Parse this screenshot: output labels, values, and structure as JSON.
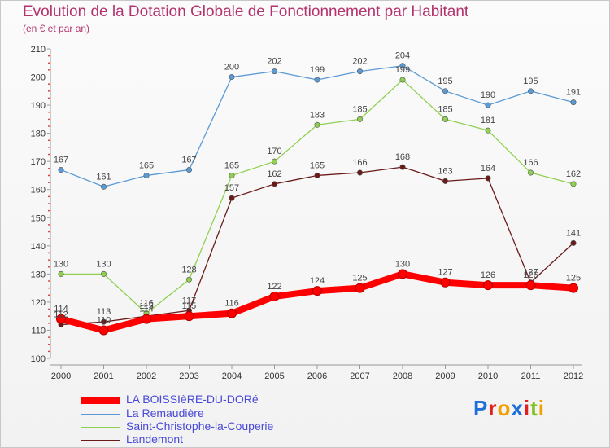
{
  "chart_data": {
    "type": "line",
    "title": "Evolution de la Dotation Globale de Fonctionnement par Habitant",
    "subtitle": "(en € et par an)",
    "x": [
      "2000",
      "2001",
      "2002",
      "2003",
      "2004",
      "2005",
      "2006",
      "2007",
      "2008",
      "2009",
      "2010",
      "2011",
      "2012"
    ],
    "ylim": [
      100,
      210
    ],
    "yticks": [
      "100",
      "110",
      "120",
      "130",
      "140",
      "150",
      "160",
      "170",
      "180",
      "190",
      "200",
      "210"
    ],
    "grid": false,
    "legend_position": "bottom-left",
    "series": [
      {
        "name": "LA BOISSIèRE-DU-DORé",
        "color": "#ff0000",
        "values": [
          114,
          110,
          114,
          115,
          116,
          122,
          124,
          125,
          130,
          127,
          126,
          126,
          125
        ],
        "labels": [
          "114",
          "110",
          "114",
          "115",
          "116",
          "122",
          "124",
          "125",
          "130",
          "127",
          "126",
          "126",
          "125"
        ]
      },
      {
        "name": "La Remaudière",
        "color": "#5b9bd5",
        "values": [
          167,
          161,
          165,
          167,
          200,
          202,
          199,
          202,
          204,
          195,
          190,
          195,
          191
        ],
        "labels": [
          "167",
          "161",
          "165",
          "167",
          "200",
          "202",
          "199",
          "202",
          "204",
          "195",
          "190",
          "195",
          "191"
        ]
      },
      {
        "name": "Saint-Christophe-la-Couperie",
        "color": "#90d050",
        "values": [
          130,
          130,
          116,
          128,
          165,
          170,
          183,
          185,
          199,
          185,
          181,
          166,
          162
        ],
        "labels": [
          "130",
          "130",
          "116",
          "128",
          "165",
          "170",
          "183",
          "185",
          "199",
          "185",
          "181",
          "166",
          "162"
        ]
      },
      {
        "name": "Landemont",
        "color": "#6b1a1a",
        "values": [
          112,
          113,
          115,
          117,
          157,
          162,
          165,
          166,
          168,
          163,
          164,
          127,
          141
        ],
        "labels": [
          "112",
          "113",
          "115",
          "117",
          "157",
          "162",
          "165",
          "166",
          "168",
          "163",
          "164",
          "127",
          "141"
        ]
      }
    ]
  },
  "logo": {
    "letters": [
      "P",
      "r",
      "o",
      "x",
      "i",
      "t",
      "i"
    ],
    "colors": [
      "#1e6fd9",
      "#e02020",
      "#f0a000",
      "#1e6fd9",
      "#e02020",
      "#80c020",
      "#f0a000"
    ]
  }
}
